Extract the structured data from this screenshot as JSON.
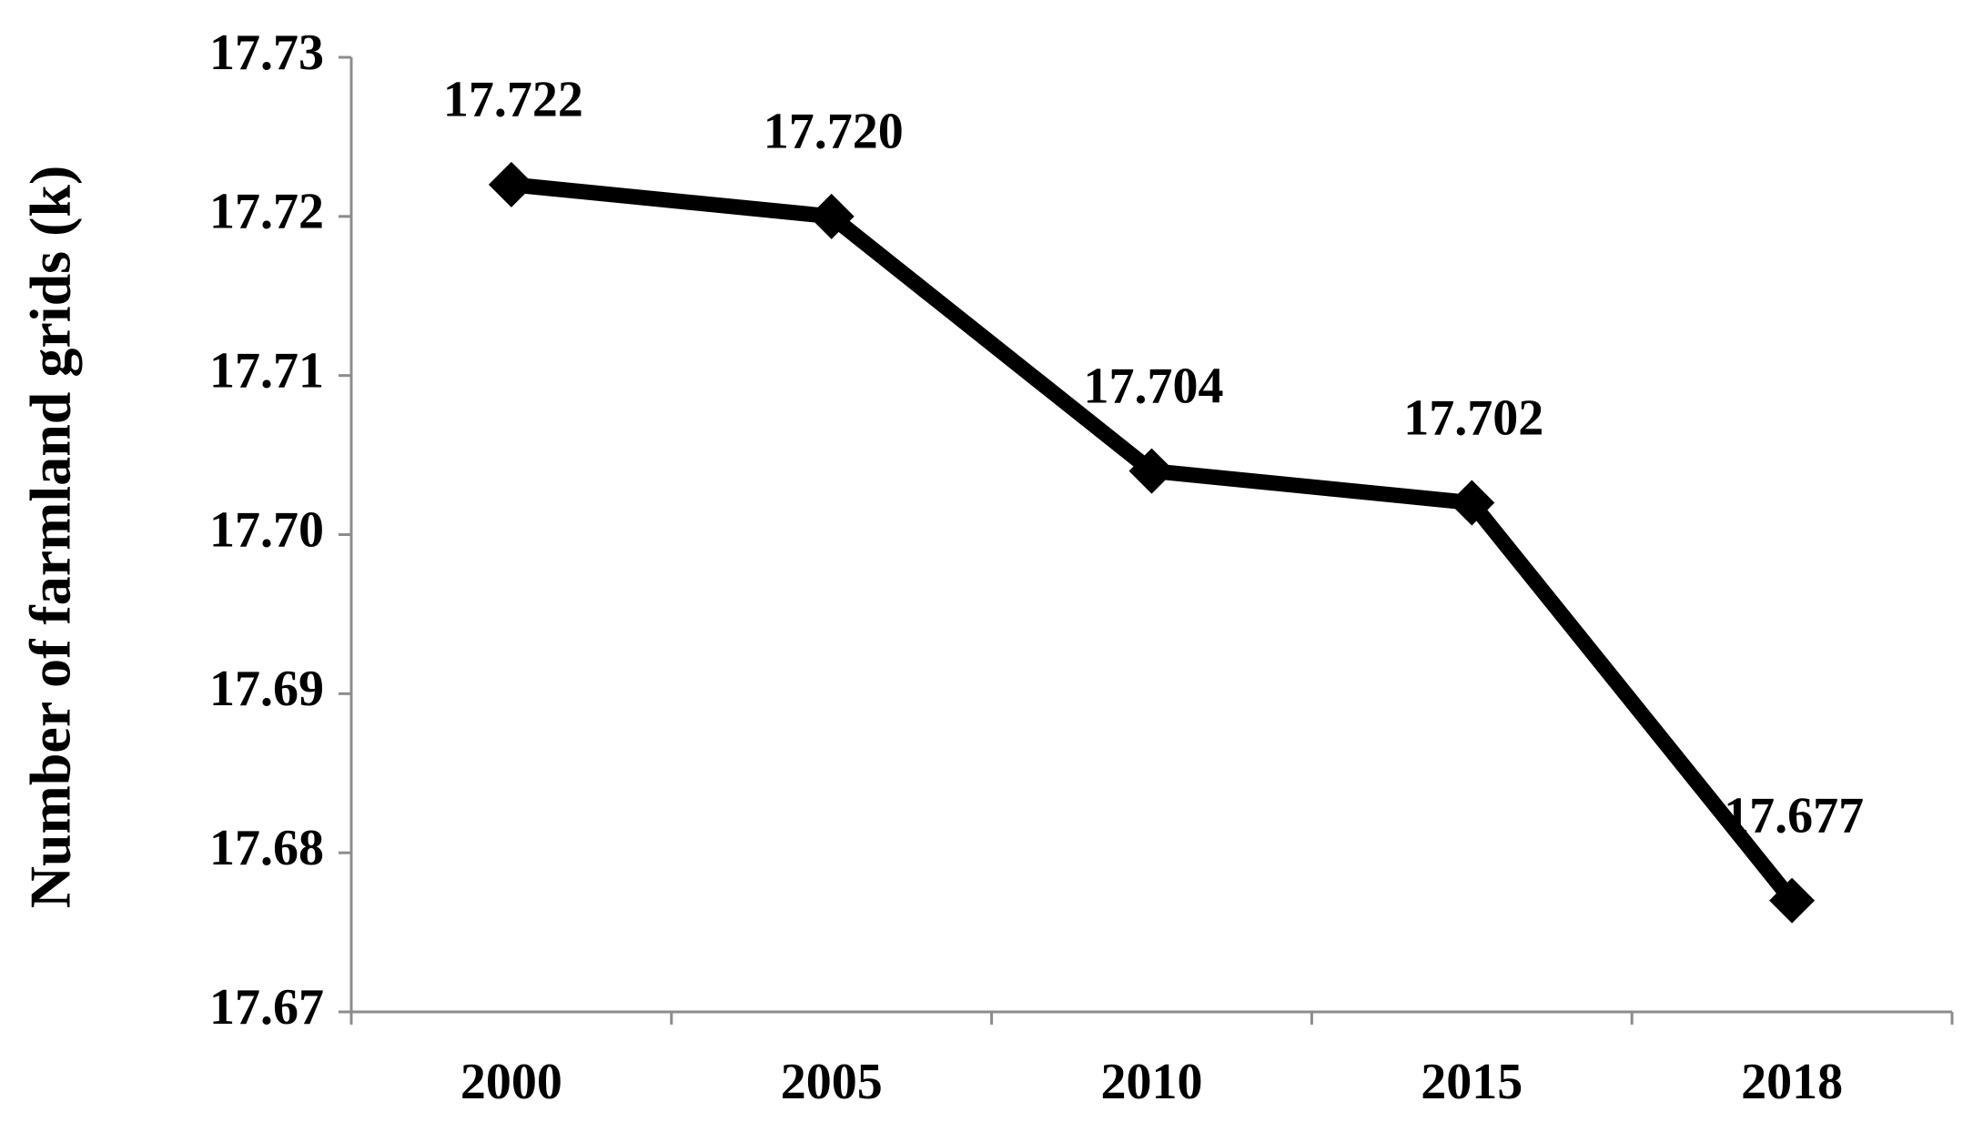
{
  "chart_data": {
    "type": "line",
    "y_label": "Number of farmland grids (k)",
    "categories": [
      "2000",
      "2005",
      "2010",
      "2015",
      "2018"
    ],
    "values": [
      17.722,
      17.72,
      17.704,
      17.702,
      17.677
    ],
    "value_labels": [
      "17.722",
      "17.720",
      "17.704",
      "17.702",
      "17.677"
    ],
    "color": "#000000",
    "ylim": [
      17.67,
      17.73
    ],
    "yticks": [
      17.67,
      17.68,
      17.69,
      {
        "value": 17.7,
        "label": "17.70"
      },
      17.71,
      17.72,
      17.73
    ],
    "grid": false
  }
}
